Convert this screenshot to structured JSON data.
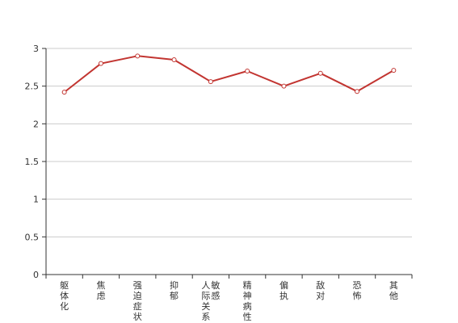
{
  "chart_data": {
    "type": "line",
    "categories": [
      "躯体化",
      "焦虑",
      "强迫症状",
      "抑郁",
      "人际关系敏感",
      "精神病性",
      "偏执",
      "敌对",
      "恐怖",
      "其他"
    ],
    "series": [
      {
        "values": [
          2.42,
          2.8,
          2.9,
          2.85,
          2.56,
          2.7,
          2.5,
          2.67,
          2.43,
          2.71
        ]
      }
    ],
    "yticks": [
      "0",
      "0.5",
      "1",
      "1.5",
      "2",
      "2.5",
      "3"
    ],
    "ylim": [
      0,
      3
    ],
    "grid": true,
    "colors": {
      "line": "#c23531",
      "grid": "#cccccc",
      "axis": "#333333"
    }
  }
}
